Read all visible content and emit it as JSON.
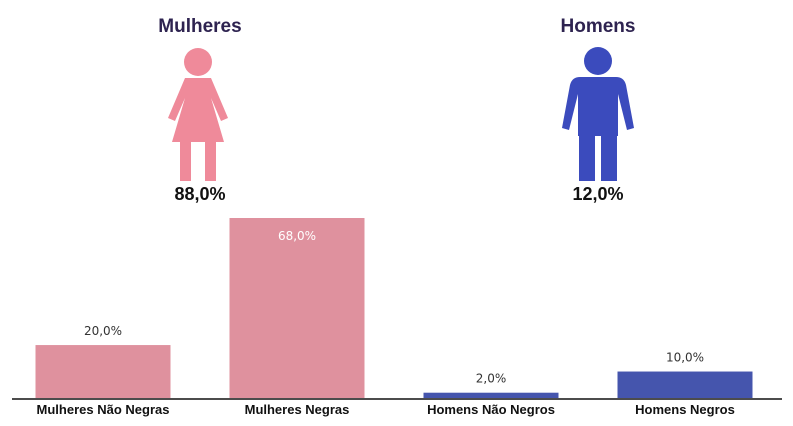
{
  "female": {
    "title": "Mulheres",
    "value": "88,0%",
    "color": "#ef8a9a",
    "icon": "woman-icon"
  },
  "male": {
    "title": "Homens",
    "value": "12,0%",
    "color": "#3b4bbd",
    "icon": "man-icon"
  },
  "chart_data": {
    "type": "bar",
    "categories": [
      "Mulheres Não Negras",
      "Mulheres Negras",
      "Homens Não Negros",
      "Homens Negros"
    ],
    "values": [
      20.0,
      68.0,
      2.0,
      10.0
    ],
    "value_labels": [
      "20,0%",
      "68,0%",
      "2,0%",
      "10,0%"
    ],
    "colors": [
      "#df919e",
      "#df919e",
      "#4555ad",
      "#4555ad"
    ],
    "ylim": [
      0,
      68
    ],
    "grid": false
  }
}
